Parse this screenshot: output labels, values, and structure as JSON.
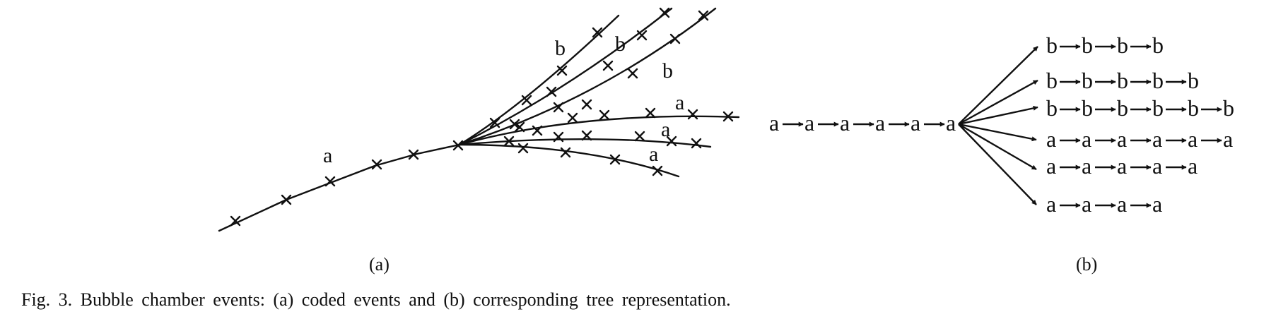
{
  "panel_a": {
    "sublabel": "(a)",
    "track_labels": [
      "a",
      "b",
      "b",
      "b",
      "a",
      "a",
      "a"
    ]
  },
  "panel_b": {
    "sublabel": "(b)",
    "chain": [
      "a",
      "a",
      "a",
      "a",
      "a",
      "a"
    ],
    "branches": [
      [
        "b",
        "b",
        "b",
        "b"
      ],
      [
        "b",
        "b",
        "b",
        "b",
        "b"
      ],
      [
        "b",
        "b",
        "b",
        "b",
        "b",
        "b"
      ],
      [
        "a",
        "a",
        "a",
        "a",
        "a",
        "a"
      ],
      [
        "a",
        "a",
        "a",
        "a",
        "a"
      ],
      [
        "a",
        "a",
        "a",
        "a"
      ]
    ]
  },
  "caption": {
    "text": "Fig. 3.   Bubble chamber events: (a) coded events and (b) corresponding tree representation."
  }
}
